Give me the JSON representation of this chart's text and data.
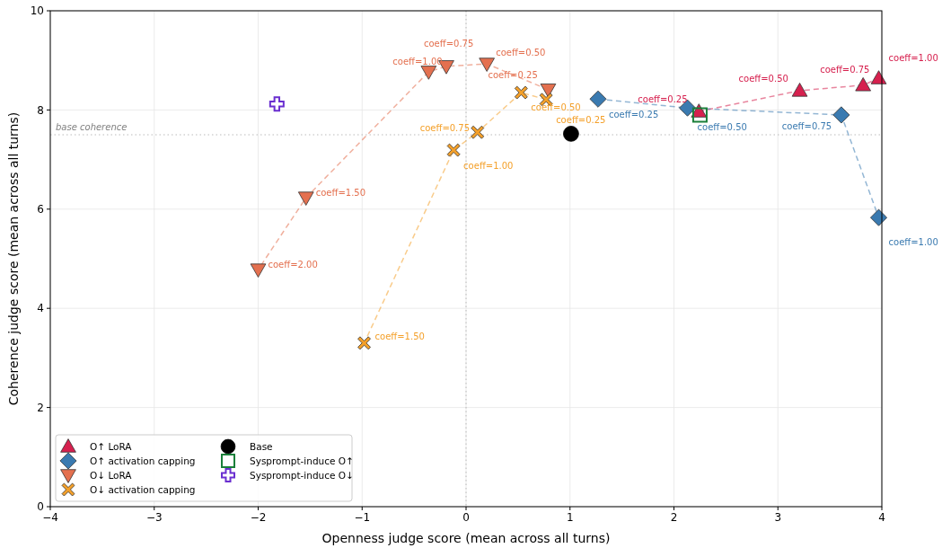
{
  "chart_data": {
    "type": "line",
    "xlabel": "Openness judge score (mean across all turns)",
    "ylabel": "Coherence judge score (mean across all turns)",
    "xlim": [
      -4,
      4
    ],
    "xticks": [
      {
        "value": -4,
        "label": "−4"
      },
      {
        "value": -3,
        "label": "−3"
      },
      {
        "value": -2,
        "label": "−2"
      },
      {
        "value": -1,
        "label": "−1"
      },
      0,
      1,
      2,
      3,
      4
    ],
    "ylim": [
      0,
      10
    ],
    "yticks": [
      0,
      2,
      4,
      6,
      8,
      10
    ],
    "grid": true,
    "legend": "bottom left",
    "line_style": "dashed",
    "ref_lines": [
      {
        "axis": "y",
        "value": 7.5,
        "label": "base coherence",
        "color": "#aaaaaa",
        "line_style": "dotted"
      },
      {
        "axis": "x",
        "value": 0,
        "label": null,
        "color": "#aaaaaa",
        "line_style": "dotted"
      }
    ],
    "series": [
      {
        "name": "O↑ LoRA",
        "color": "#d6204e",
        "marker": "triangle",
        "x": [
          2.24,
          3.21,
          3.82,
          3.97
        ],
        "values": [
          7.97,
          8.39,
          8.5,
          8.64
        ]
      },
      {
        "name": "O↑ activation capping",
        "color": "#3a7ab0",
        "marker": "diamond",
        "x": [
          1.27,
          2.13,
          3.61,
          3.97
        ],
        "values": [
          8.22,
          8.04,
          7.9,
          5.83
        ]
      },
      {
        "name": "O↓ LoRA",
        "color": "#e4704f",
        "marker": "triangle_down",
        "x": [
          0.79,
          0.2,
          -0.19,
          -0.36,
          -1.54,
          -2.0
        ],
        "values": [
          8.41,
          8.93,
          8.88,
          8.77,
          6.23,
          4.78
        ]
      },
      {
        "name": "O↓ activation capping",
        "color": "#f4a02a",
        "marker": "x",
        "x": [
          0.77,
          0.53,
          0.11,
          -0.12,
          -0.98
        ],
        "values": [
          8.21,
          8.35,
          7.55,
          7.19,
          3.3
        ]
      },
      {
        "name": "Base",
        "type": "scatter",
        "color": "#000000",
        "marker": "circle",
        "x": [
          1.01
        ],
        "values": [
          7.52
        ]
      },
      {
        "name": "Sysprompt-induce O↑",
        "type": "scatter",
        "color": "#1a7f3a",
        "marker": "square",
        "x": [
          2.25
        ],
        "values": [
          7.9
        ]
      },
      {
        "name": "Sysprompt-induce O↓",
        "type": "scatter",
        "color": "#6a2fd0",
        "marker": "cross",
        "x": [
          -1.82
        ],
        "values": [
          8.12
        ]
      }
    ],
    "annotations": [
      {
        "text": "coeff=0.25",
        "x": 2.24,
        "y": 7.97
      },
      {
        "text": "coeff=0.50",
        "x": 3.21,
        "y": 8.39
      },
      {
        "text": "coeff=0.75",
        "x": 3.82,
        "y": 8.5
      },
      {
        "text": "coeff=1.00",
        "x": 3.97,
        "y": 8.64
      },
      {
        "text": "coeff=0.25",
        "x": 1.27,
        "y": 8.22
      },
      {
        "text": "coeff=0.50",
        "x": 2.13,
        "y": 8.04
      },
      {
        "text": "coeff=0.75",
        "x": 3.61,
        "y": 7.9
      },
      {
        "text": "coeff=1.00",
        "x": 3.97,
        "y": 5.83
      },
      {
        "text": "coeff=0.25",
        "x": 0.79,
        "y": 8.41
      },
      {
        "text": "coeff=0.50",
        "x": 0.2,
        "y": 8.93
      },
      {
        "text": "coeff=0.75",
        "x": -0.19,
        "y": 8.88
      },
      {
        "text": "coeff=1.00",
        "x": -0.36,
        "y": 8.77
      },
      {
        "text": "coeff=1.50",
        "x": -1.54,
        "y": 6.23
      },
      {
        "text": "coeff=2.00",
        "x": -2.0,
        "y": 4.78
      },
      {
        "text": "coeff=0.25",
        "x": 0.77,
        "y": 8.21
      },
      {
        "text": "coeff=0.50",
        "x": 0.53,
        "y": 8.35
      },
      {
        "text": "coeff=0.75",
        "x": 0.11,
        "y": 7.55
      },
      {
        "text": "coeff=1.00",
        "x": -0.12,
        "y": 7.19
      },
      {
        "text": "coeff=1.50",
        "x": -0.98,
        "y": 3.3
      }
    ]
  }
}
